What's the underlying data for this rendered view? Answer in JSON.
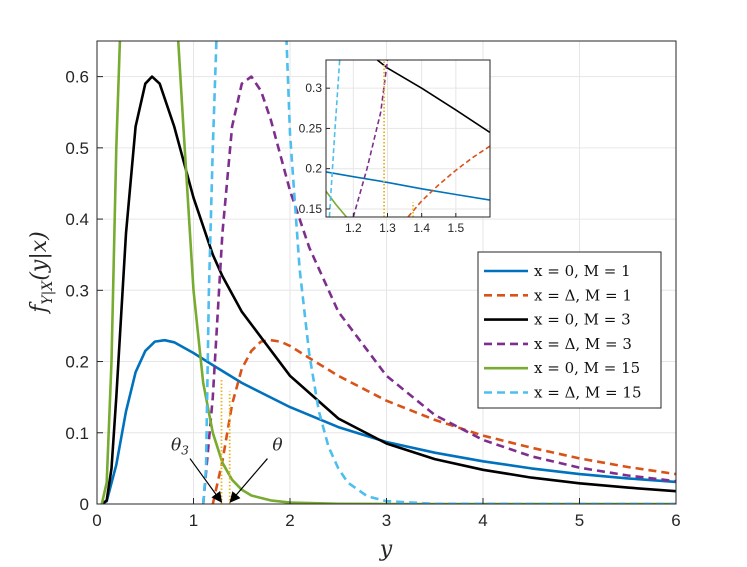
{
  "chart_data": [
    {
      "type": "line",
      "xlabel": "y",
      "ylabel": "f_{Y|X}(y|x)",
      "xlim": [
        0,
        6
      ],
      "ylim": [
        0,
        0.65
      ],
      "xticks": [
        "0",
        "1",
        "2",
        "3",
        "4",
        "5",
        "6"
      ],
      "yticks": [
        "0",
        "0.1",
        "0.2",
        "0.3",
        "0.4",
        "0.5",
        "0.6"
      ],
      "grid": true,
      "legend_position": "center-right",
      "series": [
        {
          "name": "x = 0, M = 1",
          "color": "#0072BD",
          "dash": "solid",
          "x": [
            0.05,
            0.1,
            0.2,
            0.3,
            0.4,
            0.5,
            0.6,
            0.7,
            0.8,
            1.0,
            1.2,
            1.5,
            2.0,
            2.5,
            3.0,
            3.5,
            4.0,
            4.5,
            5.0,
            5.5,
            6.0
          ],
          "y": [
            0.0,
            0.004,
            0.055,
            0.13,
            0.185,
            0.215,
            0.228,
            0.23,
            0.227,
            0.212,
            0.195,
            0.17,
            0.136,
            0.108,
            0.087,
            0.072,
            0.06,
            0.05,
            0.042,
            0.036,
            0.031
          ]
        },
        {
          "name": "x = Δ, M = 1",
          "color": "#D95319",
          "dash": "dashed",
          "x": [
            1.2,
            1.3,
            1.4,
            1.5,
            1.6,
            1.7,
            1.8,
            1.9,
            2.0,
            2.2,
            2.5,
            3.0,
            3.5,
            4.0,
            4.5,
            5.0,
            5.5,
            6.0
          ],
          "y": [
            0.0,
            0.06,
            0.14,
            0.19,
            0.215,
            0.228,
            0.23,
            0.228,
            0.222,
            0.205,
            0.18,
            0.145,
            0.118,
            0.096,
            0.079,
            0.064,
            0.052,
            0.042
          ]
        },
        {
          "name": "x = 0, M = 3",
          "color": "#000000",
          "dash": "solid",
          "x": [
            0.05,
            0.1,
            0.15,
            0.2,
            0.3,
            0.4,
            0.5,
            0.57,
            0.65,
            0.8,
            1.0,
            1.2,
            1.3,
            1.5,
            2.0,
            2.5,
            3.0,
            3.5,
            4.0,
            4.5,
            5.0,
            5.5,
            6.0
          ],
          "y": [
            0.0,
            0.005,
            0.05,
            0.15,
            0.38,
            0.53,
            0.59,
            0.6,
            0.59,
            0.53,
            0.43,
            0.35,
            0.32,
            0.27,
            0.18,
            0.12,
            0.085,
            0.063,
            0.048,
            0.037,
            0.029,
            0.023,
            0.018
          ]
        },
        {
          "name": "x = Δ, M = 3",
          "color": "#7E2F8E",
          "dash": "dashed",
          "x": [
            1.1,
            1.2,
            1.3,
            1.4,
            1.5,
            1.6,
            1.7,
            1.8,
            2.0,
            2.2,
            2.5,
            3.0,
            3.5,
            4.0,
            4.5,
            5.0,
            5.5,
            6.0
          ],
          "y": [
            0.0,
            0.15,
            0.38,
            0.53,
            0.59,
            0.6,
            0.58,
            0.54,
            0.44,
            0.36,
            0.27,
            0.18,
            0.125,
            0.09,
            0.067,
            0.051,
            0.04,
            0.032
          ]
        },
        {
          "name": "x = 0, M = 15",
          "color": "#77AC30",
          "dash": "solid",
          "x": [
            0.05,
            0.1,
            0.15,
            0.2,
            0.25,
            0.82,
            0.9,
            1.0,
            1.1,
            1.2,
            1.3,
            1.4,
            1.5,
            1.6,
            1.8,
            2.0,
            2.5,
            3.0,
            4.0,
            6.0
          ],
          "y": [
            0.0,
            0.03,
            0.2,
            0.5,
            0.7,
            0.7,
            0.52,
            0.3,
            0.17,
            0.1,
            0.058,
            0.034,
            0.02,
            0.012,
            0.005,
            0.002,
            0.0003,
            0.0,
            0.0,
            0.0
          ]
        },
        {
          "name": "x = Δ, M = 15",
          "color": "#4DBEEE",
          "dash": "dashed",
          "x": [
            1.1,
            1.13,
            1.16,
            1.2,
            1.25,
            1.3,
            1.95,
            2.0,
            2.1,
            2.2,
            2.3,
            2.4,
            2.5,
            2.6,
            2.8,
            3.0,
            3.5,
            6.0
          ],
          "y": [
            0.0,
            0.05,
            0.3,
            0.5,
            0.7,
            0.7,
            0.7,
            0.52,
            0.33,
            0.21,
            0.13,
            0.08,
            0.05,
            0.03,
            0.011,
            0.004,
            0.0003,
            0.0
          ]
        }
      ],
      "vertical_markers": [
        {
          "x": 1.29,
          "y_top": 0.177,
          "color": "#EDB120",
          "dash": "dotted"
        },
        {
          "x": 1.375,
          "y_top": 0.158,
          "color": "#EDB120",
          "dash": "dotted"
        }
      ],
      "annotations": [
        {
          "text": "θ3",
          "x": 0.86,
          "y": 0.075,
          "arrow_to_x": 1.29,
          "arrow_to_y": 0.0
        },
        {
          "text": "θ",
          "x": 1.87,
          "y": 0.075,
          "arrow_to_x": 1.38,
          "arrow_to_y": 0.0
        }
      ]
    },
    {
      "type": "line",
      "inset": true,
      "xlim": [
        1.12,
        1.6
      ],
      "ylim": [
        0.14,
        0.335
      ],
      "xticks": [
        "1.2",
        "1.3",
        "1.4",
        "1.5"
      ],
      "yticks": [
        "0.15",
        "0.2",
        "0.25",
        "0.3"
      ],
      "grid": true,
      "series": [
        {
          "name": "x = 0, M = 1",
          "color": "#0072BD",
          "dash": "solid",
          "x": [
            1.12,
            1.2,
            1.3,
            1.4,
            1.5,
            1.6
          ],
          "y": [
            0.196,
            0.19,
            0.183,
            0.175,
            0.168,
            0.161
          ]
        },
        {
          "name": "x = Δ, M = 1",
          "color": "#D95319",
          "dash": "dashed",
          "x": [
            1.36,
            1.4,
            1.45,
            1.5,
            1.55,
            1.6
          ],
          "y": [
            0.14,
            0.16,
            0.18,
            0.198,
            0.214,
            0.228
          ]
        },
        {
          "name": "x = 0, M = 3",
          "color": "#000000",
          "dash": "solid",
          "x": [
            1.27,
            1.3,
            1.4,
            1.5,
            1.6
          ],
          "y": [
            0.335,
            0.325,
            0.3,
            0.273,
            0.245
          ]
        },
        {
          "name": "x = Δ, M = 3",
          "color": "#7E2F8E",
          "dash": "dashed",
          "x": [
            1.2,
            1.24,
            1.28,
            1.3
          ],
          "y": [
            0.14,
            0.2,
            0.27,
            0.335
          ]
        },
        {
          "name": "x = 0, M = 15",
          "color": "#77AC30",
          "dash": "solid",
          "x": [
            1.12,
            1.15,
            1.18
          ],
          "y": [
            0.172,
            0.155,
            0.14
          ]
        },
        {
          "name": "x = Δ, M = 15",
          "color": "#4DBEEE",
          "dash": "dashed",
          "x": [
            1.13,
            1.145,
            1.16
          ],
          "y": [
            0.14,
            0.24,
            0.335
          ]
        }
      ],
      "vertical_markers": [
        {
          "x": 1.29,
          "y_top": 0.335,
          "color": "#EDB120",
          "dash": "dotted"
        },
        {
          "x": 1.375,
          "y_top": 0.158,
          "color": "#EDB120",
          "dash": "dotted"
        }
      ]
    }
  ],
  "legend": [
    {
      "label": "x = 0, M = 1",
      "color": "#0072BD",
      "dash": "solid"
    },
    {
      "label": "x = Δ, M = 1",
      "color": "#D95319",
      "dash": "dashed"
    },
    {
      "label": "x = 0, M = 3",
      "color": "#000000",
      "dash": "solid"
    },
    {
      "label": "x = Δ, M = 3",
      "color": "#7E2F8E",
      "dash": "dashed"
    },
    {
      "label": "x = 0, M = 15",
      "color": "#77AC30",
      "dash": "solid"
    },
    {
      "label": "x = Δ, M = 15",
      "color": "#4DBEEE",
      "dash": "dashed"
    }
  ]
}
